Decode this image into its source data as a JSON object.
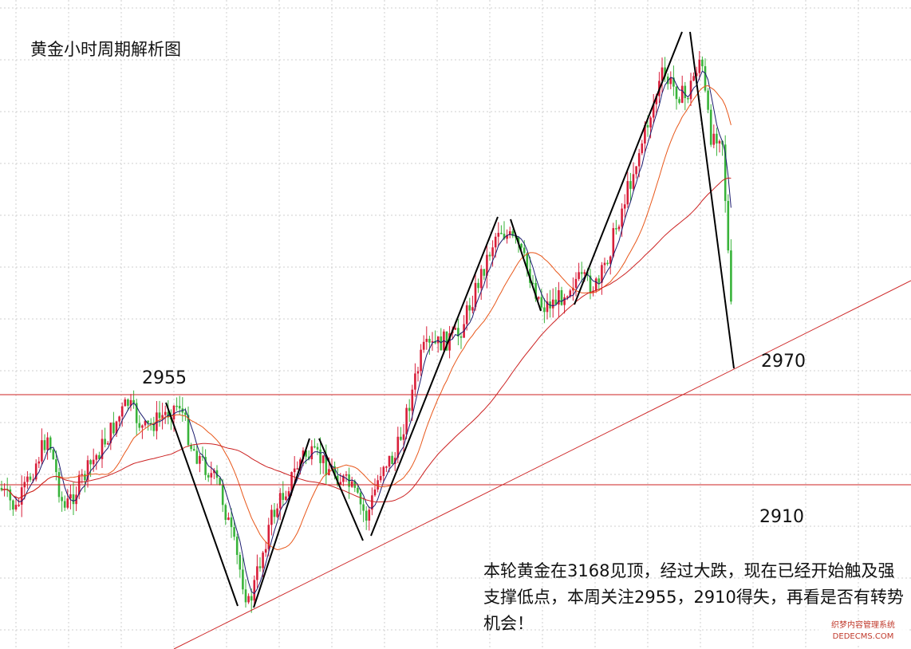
{
  "chart_data": {
    "type": "candlestick",
    "title": "黄金小时周期解析图",
    "series": [
      {
        "name": "",
        "kind": "candles"
      },
      {
        "name": "",
        "kind": "moving-average",
        "color": "#1a1a6e"
      },
      {
        "name": "",
        "kind": "moving-average",
        "color": "#e8571a"
      },
      {
        "name": "",
        "kind": "moving-average",
        "color": "#cc2222"
      }
    ],
    "horizontal_levels": [
      {
        "label": "2955",
        "color": "#cc2222"
      },
      {
        "label": "2910",
        "color": "#cc2222"
      }
    ],
    "trend_line": {
      "label": "2970",
      "color": "#cc2222"
    },
    "price_labels": {
      "resistance": "2955",
      "trend": "2970",
      "support": "2910"
    },
    "grid": true,
    "up_color": "#d81e3a",
    "down_color": "#38b33a"
  },
  "commentary": "本轮黄金在3168见顶，经过大跌，现在已经开始触及强支撑低点，本周关注2955，2910得失，再看是否有转势机会！",
  "watermark": {
    "line1": "织梦内容管理系统",
    "line2": "DEDECMS.COM"
  }
}
